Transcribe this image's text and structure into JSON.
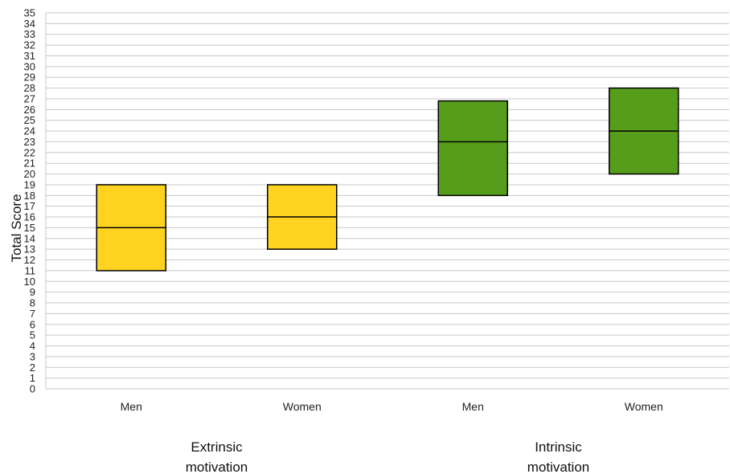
{
  "chart_data": {
    "type": "boxplot",
    "ylabel": "Total Score",
    "ylim": [
      0,
      35
    ],
    "ytick_step": 1,
    "grid": true,
    "categories": [
      "Men",
      "Women",
      "Men",
      "Women"
    ],
    "groups": [
      {
        "label_line1": "Extrinsic",
        "label_line2": "motivation",
        "members": [
          0,
          1
        ]
      },
      {
        "label_line1": "Intrinsic",
        "label_line2": "motivation",
        "members": [
          2,
          3
        ]
      }
    ],
    "boxes": [
      {
        "category": "Men",
        "group": "Extrinsic motivation",
        "q1": 11,
        "median": 15,
        "q3": 19,
        "color": "#FFD320"
      },
      {
        "category": "Women",
        "group": "Extrinsic motivation",
        "q1": 13,
        "median": 16,
        "q3": 19,
        "color": "#FFD320"
      },
      {
        "category": "Men",
        "group": "Intrinsic motivation",
        "q1": 18,
        "median": 23,
        "q3": 26.8,
        "color": "#579D1C"
      },
      {
        "category": "Women",
        "group": "Intrinsic motivation",
        "q1": 20,
        "median": 24,
        "q3": 28,
        "color": "#579D1C"
      }
    ]
  }
}
